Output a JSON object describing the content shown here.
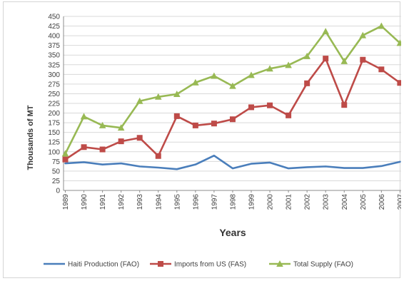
{
  "chart_data": {
    "type": "line",
    "title": "",
    "xlabel": "Years",
    "ylabel": "Thousands of MT",
    "ylim": [
      0,
      450
    ],
    "y_step": 25,
    "grid": true,
    "legend_position": "bottom",
    "x": [
      "1989",
      "1990",
      "1991",
      "1992",
      "1993",
      "1994",
      "1995",
      "1996",
      "1997",
      "1998",
      "1999",
      "2000",
      "2001",
      "2002",
      "2003",
      "2004",
      "2005",
      "2006",
      "2007"
    ],
    "series": [
      {
        "name": "Haiti Production (FAO)",
        "color": "#4a7ebb",
        "marker": "none",
        "values": [
          70,
          73,
          67,
          70,
          62,
          59,
          55,
          67,
          90,
          57,
          69,
          72,
          57,
          60,
          62,
          58,
          58,
          63,
          74
        ]
      },
      {
        "name": "Imports from US (FAS)",
        "color": "#be4b48",
        "marker": "square",
        "values": [
          80,
          112,
          106,
          127,
          136,
          89,
          192,
          168,
          173,
          184,
          215,
          220,
          194,
          277,
          341,
          221,
          338,
          313,
          278
        ]
      },
      {
        "name": "Total Supply (FAO)",
        "color": "#98b954",
        "marker": "triangle",
        "values": [
          95,
          191,
          168,
          162,
          231,
          242,
          249,
          279,
          296,
          270,
          298,
          315,
          324,
          347,
          411,
          334,
          401,
          425,
          381
        ]
      }
    ]
  }
}
